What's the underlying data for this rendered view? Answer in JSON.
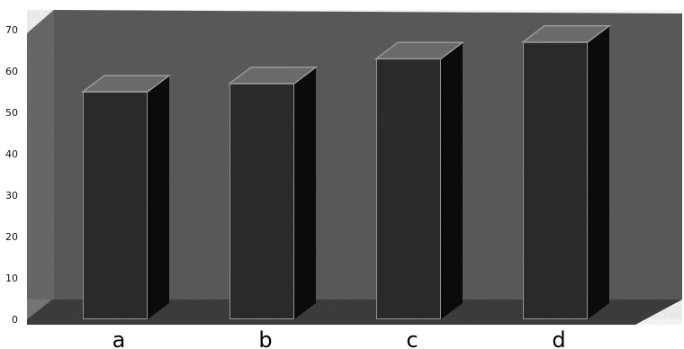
{
  "chart_data": {
    "type": "bar",
    "categories": [
      "a",
      "b",
      "c",
      "d"
    ],
    "values": [
      55,
      57,
      63,
      67
    ],
    "ylim": [
      0,
      70
    ],
    "yticks": [
      0,
      10,
      20,
      30,
      40,
      50,
      60,
      70
    ],
    "title": "",
    "xlabel": "",
    "ylabel": "",
    "grid": false,
    "legend": "none",
    "style": "3d",
    "colors": {
      "background_wall": "#5c5c5c",
      "floor": "#3e3e3e",
      "bar_front": "#2c2c2c",
      "bar_side": "#0b0b0b",
      "bar_top": "#6a6a6a",
      "bar_edge": "#9a9a9a"
    }
  }
}
